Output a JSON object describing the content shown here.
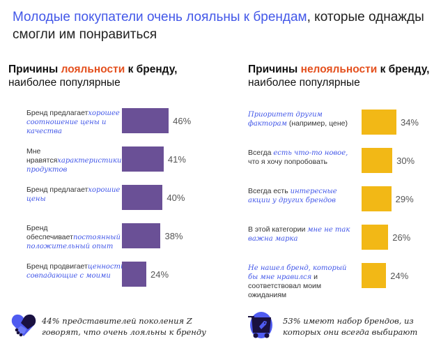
{
  "title": {
    "highlight": "Молодые покупатели очень лояльны к брендам",
    "rest": ", которые однажды смогли им понравиться"
  },
  "colors": {
    "accent_blue": "#4257e8",
    "accent_orange": "#e4501e",
    "loyal_bar": "#6a5096",
    "disloyal_bar": "#f2b816"
  },
  "chart_data": [
    {
      "type": "bar",
      "orientation": "horizontal",
      "title": {
        "pre": "Причины ",
        "accent": "лояльности",
        "post": " к бренду,",
        "sub": "наиболее популярные"
      },
      "categories": [
        {
          "plain": "Бренд предлагает",
          "italic": "хорошее соотношение цены и качества",
          "after": ""
        },
        {
          "plain": "Мне нравятся",
          "italic": "характеристики продуктов",
          "after": ""
        },
        {
          "plain": "Бренд предлагает",
          "italic": "хорошие цены",
          "after": ""
        },
        {
          "plain": "Бренд обеспечивает",
          "italic": "постоянный положительный опыт",
          "after": ""
        },
        {
          "plain": "Бренд продвигает",
          "italic": "ценности, совпадающие с моими",
          "after": ""
        }
      ],
      "values": [
        46,
        41,
        40,
        38,
        24
      ],
      "labels": [
        "46%",
        "41%",
        "40%",
        "38%",
        "24%"
      ],
      "unit": "%"
    },
    {
      "type": "bar",
      "orientation": "horizontal",
      "title": {
        "pre": "Причины ",
        "accent": "нелояльности",
        "post": " к бренду,",
        "sub": "наиболее популярные"
      },
      "categories": [
        {
          "plain": "",
          "italic": "Приоритет другим факторам",
          "after": " (например, цене)"
        },
        {
          "plain": "Всегда ",
          "italic": "есть что-то новое,",
          "after": " что я хочу попробовать"
        },
        {
          "plain": "Всегда есть ",
          "italic": "интересные акции у других брендов",
          "after": ""
        },
        {
          "plain": "В этой категории ",
          "italic": "мне не так важна марка",
          "after": ""
        },
        {
          "plain": "",
          "italic": "Не нашел бренд, который бы мне нравился",
          "after": " и соответствовал моим ожиданиям"
        }
      ],
      "values": [
        34,
        30,
        29,
        26,
        24
      ],
      "labels": [
        "34%",
        "30%",
        "29%",
        "26%",
        "24%"
      ],
      "unit": "%"
    }
  ],
  "footer": {
    "left": {
      "icon": "handshake-heart-icon",
      "text": "44% представителей поколения Z говорят, что очень лояльны к бренду"
    },
    "right": {
      "icon": "shopping-cart-tag-icon",
      "text": "53% имеют набор брендов, из которых они всегда выбирают"
    }
  }
}
